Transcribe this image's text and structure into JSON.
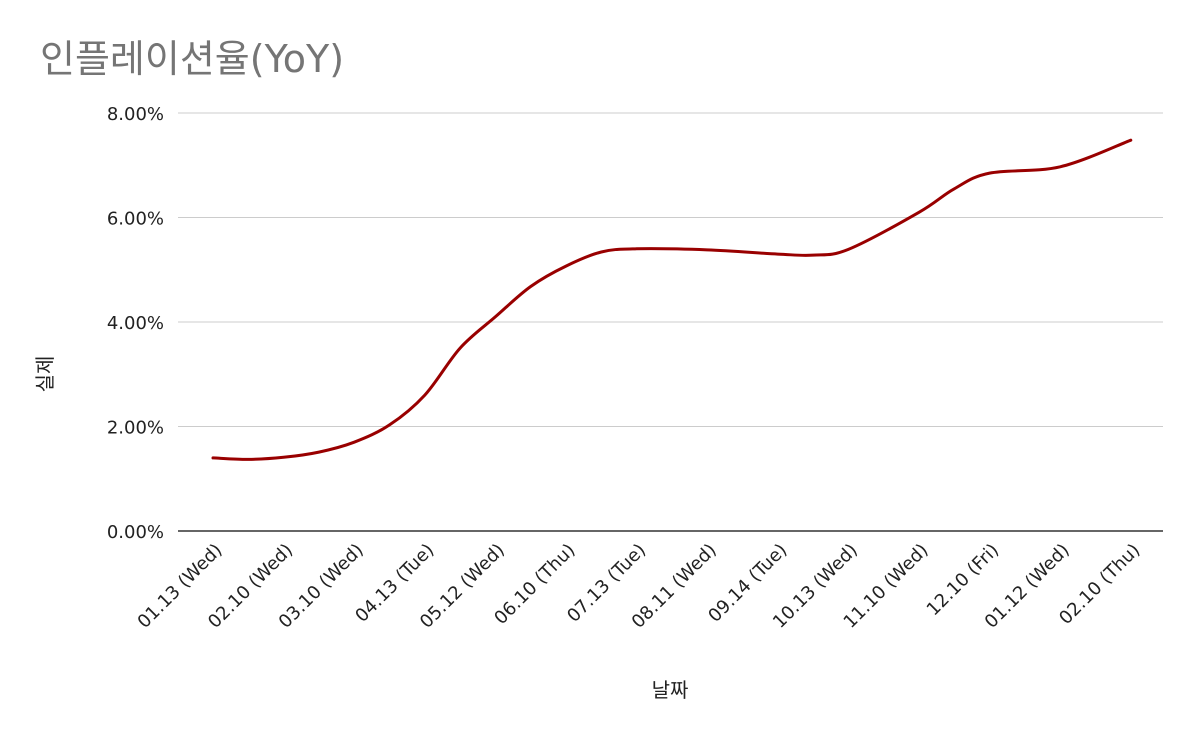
{
  "chart_data": {
    "type": "line",
    "title": "인플레이션율(YoY)",
    "xlabel": "날짜",
    "ylabel": "실제",
    "categories": [
      "01.13 (Wed)",
      "02.10 (Wed)",
      "03.10 (Wed)",
      "04.13 (Tue)",
      "05.12 (Wed)",
      "06.10 (Thu)",
      "07.13 (Tue)",
      "08.11 (Wed)",
      "09.14 (Tue)",
      "10.13 (Wed)",
      "11.10 (Wed)",
      "12.10 (Fri)",
      "01.12 (Wed)",
      "02.10 (Thu)"
    ],
    "series": [
      {
        "values": [
          1.4,
          1.37,
          1.41,
          1.51,
          1.7,
          2.03,
          2.6,
          3.5,
          4.1,
          4.68,
          5.07,
          5.34,
          5.4,
          5.38,
          5.3,
          5.28,
          5.39,
          6.1,
          6.55,
          6.85,
          6.97,
          7.48
        ],
        "x": [
          0,
          0.5,
          1,
          1.5,
          2,
          2.5,
          3,
          3.5,
          4,
          4.5,
          5,
          5.5,
          6,
          7,
          8,
          8.5,
          9,
          10,
          10.5,
          11,
          12,
          13
        ]
      }
    ],
    "ylim": [
      0,
      8
    ],
    "yticks": [
      "0.00%",
      "2.00%",
      "4.00%",
      "6.00%",
      "8.00%"
    ],
    "grid": true,
    "colors": {
      "line": "#990000",
      "grid": "#cccccc",
      "axis": "#333333"
    }
  }
}
